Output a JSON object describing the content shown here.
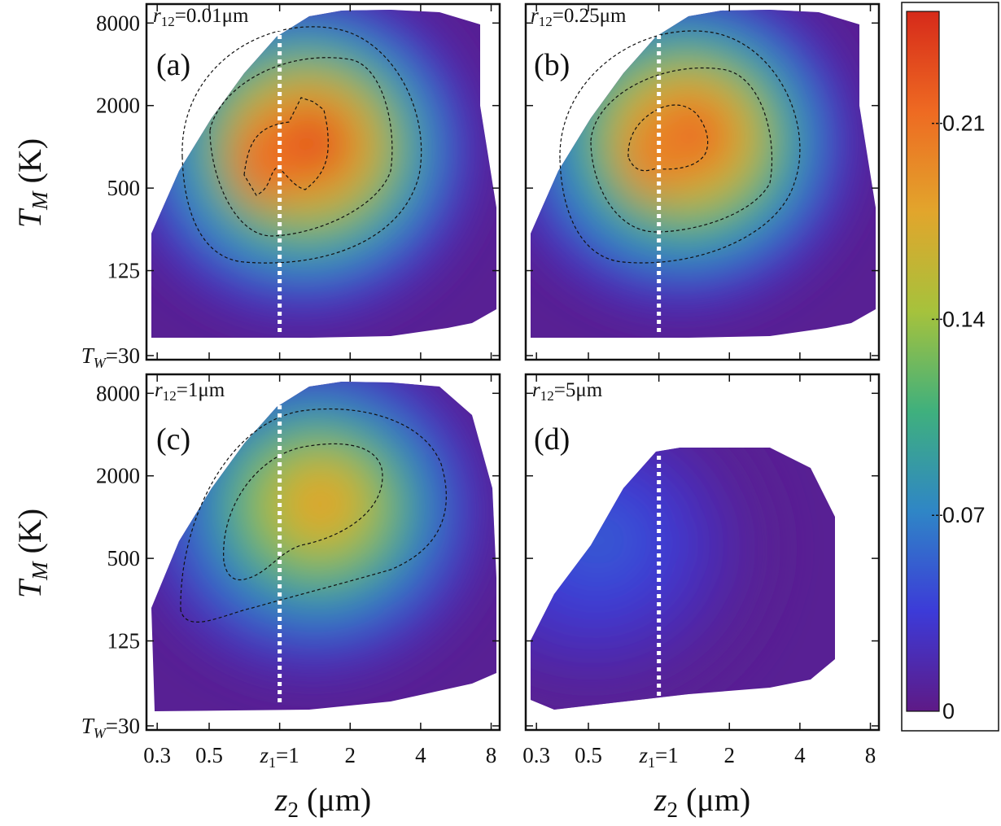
{
  "chart_data": {
    "type": "heatmap",
    "layout": "2x2 grid of panels with a shared vertical colorbar on the right",
    "colormap": [
      "#5e1a86",
      "#3c3bd8",
      "#2f86c6",
      "#3fb07d",
      "#a6c23c",
      "#e2a52c",
      "#ee6a22",
      "#d62a1a"
    ],
    "xlabel": {
      "main": "z",
      "sub": "2",
      "unit": " (μm)"
    },
    "ylabel": {
      "main": "T",
      "sub": "M",
      "unit": " (K)"
    },
    "x_scale": "log",
    "y_scale": "log",
    "xlim": [
      0.27,
      8.7
    ],
    "ylim": [
      28,
      11000
    ],
    "x_ticks": [
      0.3,
      0.5,
      1,
      2,
      4,
      8
    ],
    "x_tick_labels": [
      "0.3",
      "0.5",
      "z1=1",
      "2",
      "4",
      "8"
    ],
    "x_tick_label_z1": {
      "main": "z",
      "sub": "1",
      "rest": "=1"
    },
    "y_ticks": [
      30,
      125,
      500,
      2000,
      8000
    ],
    "y_tick_labels": [
      "TW=30",
      "125",
      "500",
      "2000",
      "8000"
    ],
    "y_tick_label_tw": {
      "main": "T",
      "sub": "W",
      "rest": "=30"
    },
    "z1_marker": 1,
    "colorbar": {
      "range": [
        0,
        0.25
      ],
      "ticks": [
        0,
        0.07,
        0.14,
        0.21
      ],
      "tick_labels": [
        "0",
        "0.07",
        "0.14",
        "0.21"
      ]
    },
    "panels": [
      {
        "id": "a",
        "letter": "(a)",
        "r12_label": {
          "main": "r",
          "sub": "12",
          "rest": "=0.01μm"
        },
        "r12": 0.01,
        "peak_value": 0.23,
        "contour_levels": [
          0.07,
          0.14,
          0.21
        ],
        "peaks": [
          {
            "z2": 1.35,
            "TM": 1100,
            "value": 0.23
          },
          {
            "z2": 0.85,
            "TM": 800,
            "value": 0.21
          }
        ]
      },
      {
        "id": "b",
        "letter": "(b)",
        "r12_label": {
          "main": "r",
          "sub": "12",
          "rest": "=0.25μm"
        },
        "r12": 0.25,
        "peak_value": 0.22,
        "contour_levels": [
          0.07,
          0.14,
          0.21
        ],
        "peaks": [
          {
            "z2": 1.35,
            "TM": 1250,
            "value": 0.22
          },
          {
            "z2": 0.95,
            "TM": 900,
            "value": 0.2
          }
        ]
      },
      {
        "id": "c",
        "letter": "(c)",
        "r12_label": {
          "main": "r",
          "sub": "12",
          "rest": "=1μm"
        },
        "r12": 1,
        "peak_value": 0.18,
        "contour_levels": [
          0.07,
          0.14
        ],
        "peaks": [
          {
            "z2": 1.5,
            "TM": 1300,
            "value": 0.18
          }
        ]
      },
      {
        "id": "d",
        "letter": "(d)",
        "r12_label": {
          "main": "r",
          "sub": "12",
          "rest": "=5μm"
        },
        "r12": 5,
        "peak_value": 0.05,
        "contour_levels": [],
        "peaks": [
          {
            "z2": 0.55,
            "TM": 700,
            "value": 0.05
          }
        ]
      }
    ]
  }
}
